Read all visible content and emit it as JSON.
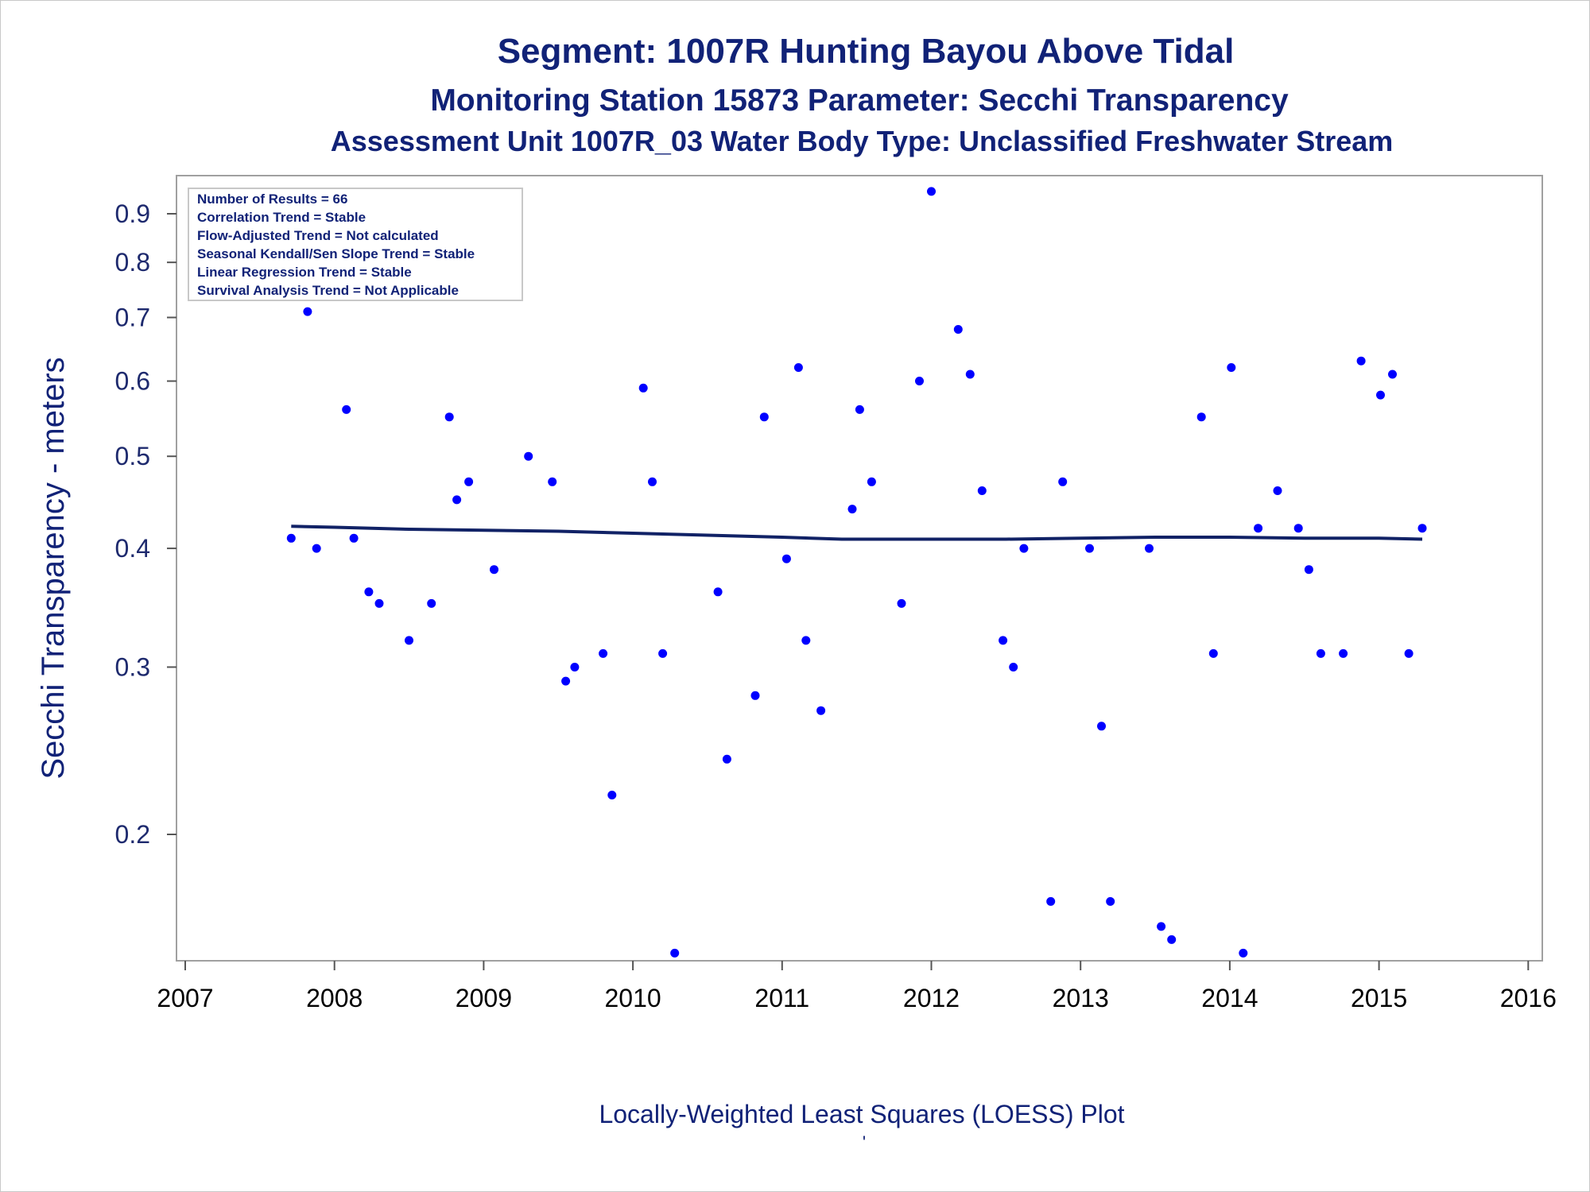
{
  "titles": {
    "line1": "Segment: 1007R  Hunting Bayou Above Tidal",
    "line2": "Monitoring Station 15873 Parameter: Secchi Transparency",
    "line3": "Assessment Unit 1007R_03   Water Body Type: Unclassified Freshwater Stream"
  },
  "inset": {
    "lines": [
      "Number of Results = 66",
      "Correlation Trend = Stable",
      "Flow-Adjusted Trend = Not calculated",
      "Seasonal Kendall/Sen Slope Trend = Stable",
      "Linear Regression Trend = Stable",
      "Survival Analysis Trend = Not Applicable"
    ]
  },
  "footer": {
    "caption": "Locally-Weighted Least Squares (LOESS) Plot",
    "mark": "'"
  },
  "colors": {
    "points": "#0000ff",
    "loess_line": "#112266",
    "text": "#112277",
    "frame": "#a0a0a0"
  },
  "chart_data": {
    "type": "scatter",
    "title": "Segment: 1007R  Hunting Bayou Above Tidal",
    "xlabel": "",
    "ylabel": "Secchi Transparency - meters",
    "y_scale": "log",
    "xlim": [
      2007,
      2016
    ],
    "ylim": [
      0.14,
      0.98
    ],
    "x_ticks": [
      2007,
      2008,
      2009,
      2010,
      2011,
      2012,
      2013,
      2014,
      2015,
      2016
    ],
    "y_ticks": [
      0.2,
      0.3,
      0.4,
      0.5,
      0.6,
      0.7,
      0.8,
      0.9
    ],
    "grid": false,
    "series": [
      {
        "type": "scatter",
        "points": [
          {
            "x": 2007.71,
            "y": 0.41
          },
          {
            "x": 2007.82,
            "y": 0.71
          },
          {
            "x": 2007.88,
            "y": 0.4
          },
          {
            "x": 2008.08,
            "y": 0.56
          },
          {
            "x": 2008.13,
            "y": 0.41
          },
          {
            "x": 2008.23,
            "y": 0.36
          },
          {
            "x": 2008.3,
            "y": 0.35
          },
          {
            "x": 2008.5,
            "y": 0.32
          },
          {
            "x": 2008.65,
            "y": 0.35
          },
          {
            "x": 2008.77,
            "y": 0.55
          },
          {
            "x": 2008.82,
            "y": 0.45
          },
          {
            "x": 2008.9,
            "y": 0.47
          },
          {
            "x": 2009.07,
            "y": 0.38
          },
          {
            "x": 2009.3,
            "y": 0.5
          },
          {
            "x": 2009.46,
            "y": 0.47
          },
          {
            "x": 2009.55,
            "y": 0.29
          },
          {
            "x": 2009.61,
            "y": 0.3
          },
          {
            "x": 2009.8,
            "y": 0.31
          },
          {
            "x": 2009.86,
            "y": 0.22
          },
          {
            "x": 2010.07,
            "y": 0.59
          },
          {
            "x": 2010.13,
            "y": 0.47
          },
          {
            "x": 2010.2,
            "y": 0.31
          },
          {
            "x": 2010.28,
            "y": 0.15
          },
          {
            "x": 2010.57,
            "y": 0.36
          },
          {
            "x": 2010.63,
            "y": 0.24
          },
          {
            "x": 2010.82,
            "y": 0.28
          },
          {
            "x": 2010.88,
            "y": 0.55
          },
          {
            "x": 2011.03,
            "y": 0.39
          },
          {
            "x": 2011.11,
            "y": 0.62
          },
          {
            "x": 2011.16,
            "y": 0.32
          },
          {
            "x": 2011.26,
            "y": 0.27
          },
          {
            "x": 2011.47,
            "y": 0.44
          },
          {
            "x": 2011.52,
            "y": 0.56
          },
          {
            "x": 2011.6,
            "y": 0.47
          },
          {
            "x": 2011.8,
            "y": 0.35
          },
          {
            "x": 2011.92,
            "y": 0.6
          },
          {
            "x": 2012.0,
            "y": 0.95
          },
          {
            "x": 2012.18,
            "y": 0.68
          },
          {
            "x": 2012.26,
            "y": 0.61
          },
          {
            "x": 2012.34,
            "y": 0.46
          },
          {
            "x": 2012.48,
            "y": 0.32
          },
          {
            "x": 2012.55,
            "y": 0.3
          },
          {
            "x": 2012.62,
            "y": 0.4
          },
          {
            "x": 2012.8,
            "y": 0.17
          },
          {
            "x": 2012.88,
            "y": 0.47
          },
          {
            "x": 2013.06,
            "y": 0.4
          },
          {
            "x": 2013.14,
            "y": 0.26
          },
          {
            "x": 2013.2,
            "y": 0.17
          },
          {
            "x": 2013.46,
            "y": 0.4
          },
          {
            "x": 2013.54,
            "y": 0.16
          },
          {
            "x": 2013.61,
            "y": 0.155
          },
          {
            "x": 2013.81,
            "y": 0.55
          },
          {
            "x": 2013.89,
            "y": 0.31
          },
          {
            "x": 2014.01,
            "y": 0.62
          },
          {
            "x": 2014.09,
            "y": 0.15
          },
          {
            "x": 2014.19,
            "y": 0.42
          },
          {
            "x": 2014.32,
            "y": 0.46
          },
          {
            "x": 2014.46,
            "y": 0.42
          },
          {
            "x": 2014.53,
            "y": 0.38
          },
          {
            "x": 2014.61,
            "y": 0.31
          },
          {
            "x": 2014.76,
            "y": 0.31
          },
          {
            "x": 2014.88,
            "y": 0.63
          },
          {
            "x": 2015.01,
            "y": 0.58
          },
          {
            "x": 2015.09,
            "y": 0.61
          },
          {
            "x": 2015.2,
            "y": 0.31
          },
          {
            "x": 2015.29,
            "y": 0.42
          }
        ]
      },
      {
        "type": "line",
        "points": [
          {
            "x": 2007.71,
            "y": 0.422
          },
          {
            "x": 2008.0,
            "y": 0.421
          },
          {
            "x": 2008.5,
            "y": 0.419
          },
          {
            "x": 2009.0,
            "y": 0.418
          },
          {
            "x": 2009.5,
            "y": 0.417
          },
          {
            "x": 2010.0,
            "y": 0.415
          },
          {
            "x": 2010.5,
            "y": 0.413
          },
          {
            "x": 2011.0,
            "y": 0.411
          },
          {
            "x": 2011.4,
            "y": 0.409
          },
          {
            "x": 2012.0,
            "y": 0.409
          },
          {
            "x": 2012.5,
            "y": 0.409
          },
          {
            "x": 2013.0,
            "y": 0.41
          },
          {
            "x": 2013.5,
            "y": 0.411
          },
          {
            "x": 2014.0,
            "y": 0.411
          },
          {
            "x": 2014.5,
            "y": 0.41
          },
          {
            "x": 2015.0,
            "y": 0.41
          },
          {
            "x": 2015.29,
            "y": 0.409
          }
        ]
      }
    ]
  }
}
